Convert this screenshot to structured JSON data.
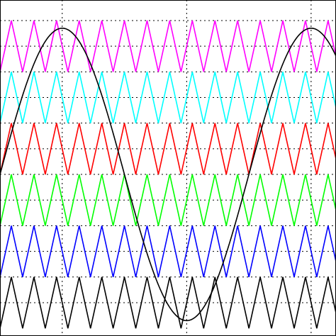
{
  "chart_data": {
    "type": "line",
    "title": "",
    "xlabel": "",
    "ylabel": "",
    "xlim": [
      -0.5,
      2.2
    ],
    "ylim": [
      -0.15,
      6.4
    ],
    "grid": true,
    "grid_style": "dotted",
    "x_gridlines": [
      0,
      1,
      2
    ],
    "y_gridlines": [
      0.5,
      1.0,
      1.5,
      2.0,
      2.5,
      3.0,
      3.5,
      4.0,
      4.5,
      5.0,
      5.5,
      6.0
    ],
    "carrier_frequency": 5.5,
    "series": [
      {
        "color": "#ff00ff",
        "min": 5.0,
        "max": 6.0,
        "phase_x": -0.409
      },
      {
        "color": "#00ffff",
        "min": 4.0,
        "max": 5.0,
        "phase_x": -0.409
      },
      {
        "color": "#ff0000",
        "min": 3.0,
        "max": 4.0,
        "phase_x": -0.409
      },
      {
        "color": "#00ff00",
        "min": 2.0,
        "max": 3.0,
        "phase_x": -0.409
      },
      {
        "color": "#0000ff",
        "min": 1.0,
        "max": 2.0,
        "phase_x": -0.409
      },
      {
        "color": "#000000",
        "min": 0.0,
        "max": 1.0,
        "phase_x": -0.409
      }
    ],
    "reference": {
      "type": "sinusoid",
      "color": "#000000",
      "offset": 3.0,
      "amplitude": 2.85,
      "period": 2.0,
      "peak_x": 0.0
    }
  }
}
